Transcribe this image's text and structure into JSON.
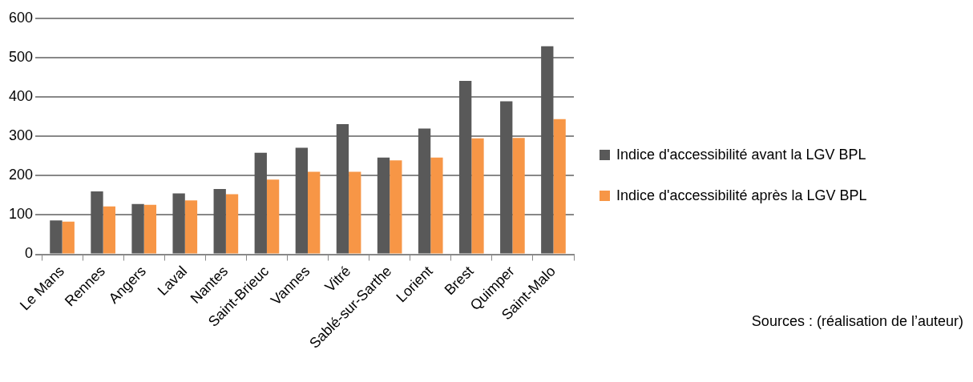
{
  "chart_data": {
    "type": "bar",
    "categories": [
      "Le Mans",
      "Rennes",
      "Angers",
      "Laval",
      "Nantes",
      "Saint-Brieuc",
      "Vannes",
      "Vitré",
      "Sablé-sur-Sarthe",
      "Lorient",
      "Brest",
      "Quimper",
      "Saint-Malo"
    ],
    "series": [
      {
        "name": "Indice d'accessibilité avant la LGV BPL",
        "color": "#595959",
        "values": [
          86,
          160,
          128,
          155,
          166,
          258,
          271,
          331,
          246,
          320,
          441,
          389,
          529
        ]
      },
      {
        "name": "Indice d'accessibilité après la LGV BPL",
        "color": "#f79646",
        "values": [
          83,
          122,
          126,
          137,
          153,
          190,
          210,
          210,
          239,
          246,
          295,
          296,
          344
        ]
      }
    ],
    "ylim": [
      0,
      600
    ],
    "yticks": [
      0,
      100,
      200,
      300,
      400,
      500,
      600
    ],
    "grid": "y",
    "legend": "right",
    "annotations": [
      "Sources : (réalisation de l’auteur)"
    ]
  }
}
